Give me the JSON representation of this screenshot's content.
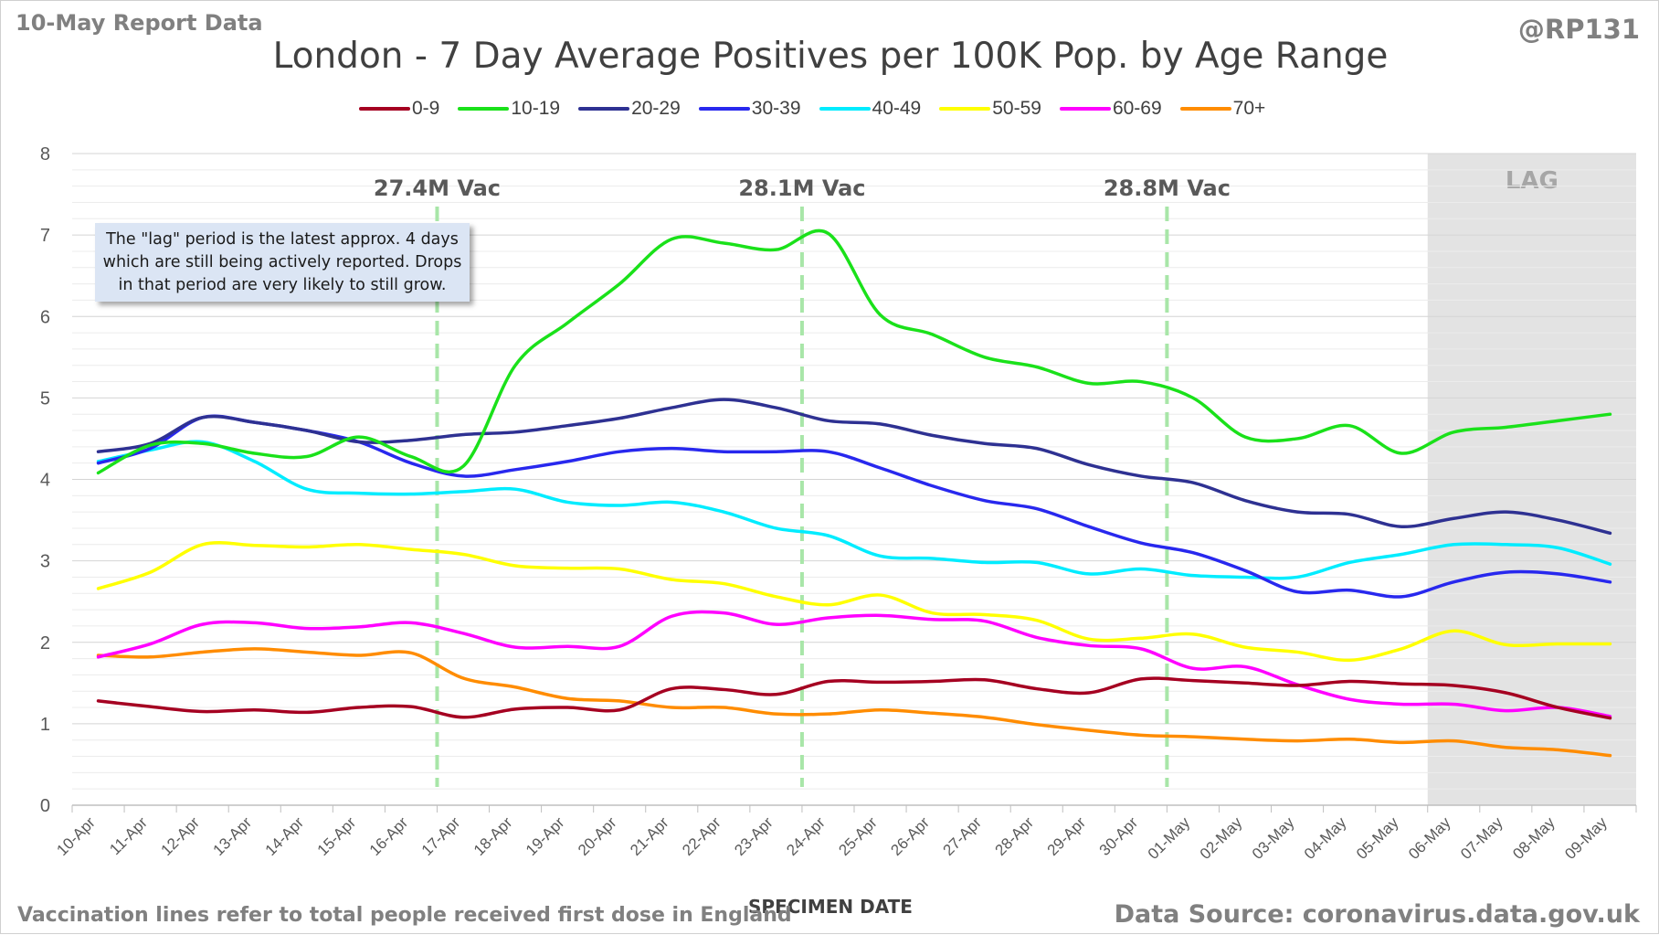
{
  "header": {
    "report_label": "10-May Report Data",
    "handle": "@RP131"
  },
  "footer": {
    "vaccination_note": "Vaccination lines refer to total people received first dose in England",
    "source": "Data Source: coronavirus.data.gov.uk"
  },
  "annotations": {
    "lag_note": "The \"lag\" period is the latest approx. 4 days which are still being actively reported. Drops in that period are very likely to still grow.",
    "lag_label": "LAG"
  },
  "chart_data": {
    "type": "line",
    "title": "London - 7 Day Average Positives per 100K Pop. by Age Range",
    "xlabel": "SPECIMEN DATE",
    "ylabel": "",
    "ylim": [
      0,
      8
    ],
    "y_ticks": [
      "0",
      "1",
      "2",
      "3",
      "4",
      "5",
      "6",
      "7",
      "8"
    ],
    "grid": "horizontal",
    "legend_position": "top",
    "categories": [
      "10-Apr",
      "11-Apr",
      "12-Apr",
      "13-Apr",
      "14-Apr",
      "15-Apr",
      "16-Apr",
      "17-Apr",
      "18-Apr",
      "19-Apr",
      "20-Apr",
      "21-Apr",
      "22-Apr",
      "23-Apr",
      "24-Apr",
      "25-Apr",
      "26-Apr",
      "27-Apr",
      "28-Apr",
      "29-Apr",
      "30-Apr",
      "01-May",
      "02-May",
      "03-May",
      "04-May",
      "05-May",
      "06-May",
      "07-May",
      "08-May",
      "09-May"
    ],
    "lag_start": "06-May",
    "vaccination_lines": [
      {
        "label": "27.4M Vac",
        "position": 6.5
      },
      {
        "label": "28.1M Vac",
        "position": 13.5
      },
      {
        "label": "28.8M Vac",
        "position": 20.5
      }
    ],
    "series": [
      {
        "name": "0-9",
        "color": "#a50021",
        "values": [
          1.28,
          1.21,
          1.15,
          1.17,
          1.14,
          1.2,
          1.21,
          1.08,
          1.18,
          1.2,
          1.17,
          1.43,
          1.42,
          1.36,
          1.52,
          1.51,
          1.52,
          1.54,
          1.43,
          1.38,
          1.55,
          1.53,
          1.5,
          1.47,
          1.52,
          1.49,
          1.47,
          1.38,
          1.2,
          1.07
        ]
      },
      {
        "name": "10-19",
        "color": "#1ae11a",
        "values": [
          4.08,
          4.42,
          4.44,
          4.32,
          4.28,
          4.52,
          4.28,
          4.16,
          5.4,
          5.92,
          6.4,
          6.95,
          6.9,
          6.82,
          7.02,
          6.02,
          5.78,
          5.5,
          5.38,
          5.18,
          5.2,
          5.0,
          4.52,
          4.5,
          4.66,
          4.32,
          4.58,
          4.64,
          4.72,
          4.8
        ]
      },
      {
        "name": "20-29",
        "color": "#2e3192",
        "values": [
          4.34,
          4.44,
          4.76,
          4.7,
          4.6,
          4.46,
          4.48,
          4.55,
          4.58,
          4.66,
          4.75,
          4.88,
          4.98,
          4.88,
          4.72,
          4.68,
          4.54,
          4.44,
          4.38,
          4.18,
          4.04,
          3.96,
          3.74,
          3.6,
          3.57,
          3.42,
          3.52,
          3.6,
          3.5,
          3.34
        ]
      },
      {
        "name": "30-39",
        "color": "#2828ee",
        "values": [
          4.2,
          4.38,
          4.76,
          4.7,
          4.6,
          4.46,
          4.2,
          4.04,
          4.12,
          4.22,
          4.34,
          4.38,
          4.34,
          4.34,
          4.34,
          4.14,
          3.92,
          3.74,
          3.64,
          3.42,
          3.22,
          3.1,
          2.88,
          2.62,
          2.64,
          2.56,
          2.74,
          2.86,
          2.84,
          2.74
        ]
      },
      {
        "name": "40-49",
        "color": "#00ecff",
        "values": [
          4.22,
          4.36,
          4.46,
          4.22,
          3.88,
          3.83,
          3.82,
          3.85,
          3.88,
          3.72,
          3.68,
          3.72,
          3.6,
          3.4,
          3.31,
          3.06,
          3.03,
          2.98,
          2.98,
          2.84,
          2.9,
          2.82,
          2.8,
          2.8,
          2.98,
          3.08,
          3.2,
          3.2,
          3.16,
          2.96
        ]
      },
      {
        "name": "50-59",
        "color": "#ffff00",
        "values": [
          2.66,
          2.86,
          3.2,
          3.19,
          3.17,
          3.2,
          3.14,
          3.08,
          2.94,
          2.91,
          2.9,
          2.77,
          2.72,
          2.56,
          2.46,
          2.58,
          2.36,
          2.34,
          2.27,
          2.04,
          2.05,
          2.1,
          1.94,
          1.88,
          1.78,
          1.92,
          2.14,
          1.97,
          1.98,
          1.98
        ]
      },
      {
        "name": "60-69",
        "color": "#ff00ff",
        "values": [
          1.82,
          1.98,
          2.22,
          2.24,
          2.17,
          2.19,
          2.24,
          2.11,
          1.94,
          1.95,
          1.95,
          2.32,
          2.36,
          2.22,
          2.3,
          2.33,
          2.28,
          2.26,
          2.06,
          1.96,
          1.92,
          1.68,
          1.7,
          1.48,
          1.3,
          1.24,
          1.24,
          1.16,
          1.2,
          1.09
        ]
      },
      {
        "name": "70+",
        "color": "#ff8c00",
        "values": [
          1.84,
          1.82,
          1.88,
          1.92,
          1.88,
          1.84,
          1.87,
          1.56,
          1.45,
          1.31,
          1.28,
          1.2,
          1.2,
          1.12,
          1.12,
          1.17,
          1.13,
          1.08,
          0.99,
          0.92,
          0.86,
          0.84,
          0.81,
          0.79,
          0.81,
          0.77,
          0.79,
          0.71,
          0.68,
          0.61
        ]
      }
    ]
  }
}
